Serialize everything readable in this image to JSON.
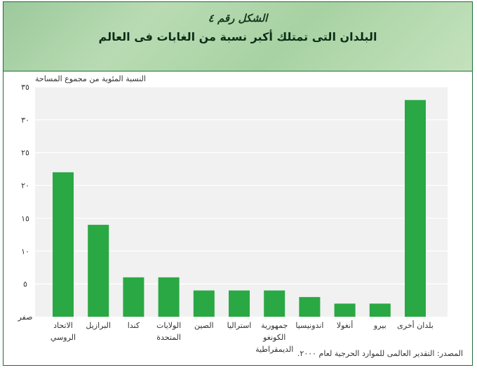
{
  "figure": {
    "number": "الشكل رقم ٤",
    "title": "البلدان التى تمتلك أكبر نسبة من الغابات فى العالم"
  },
  "source": "المصدر: التقدير العالمى للموارد الحرجية لعام ٢٠٠٠.",
  "colors": {
    "bar": "#2aa844",
    "plot_bg": "#f1f1f1",
    "grid": "#ffffff",
    "header": "#a8d2a3"
  },
  "chart_data": {
    "type": "bar",
    "ylabel": "النسبة المئوية من مجموع المساحة",
    "xlabel": "",
    "ylim": [
      0,
      35
    ],
    "yticks": [
      0,
      5,
      10,
      15,
      20,
      25,
      30,
      35
    ],
    "ytick_labels": [
      "صفر",
      "٥",
      "١٠",
      "١٥",
      "٢٠",
      "٢٥",
      "٣٠",
      "٣٥"
    ],
    "grid": true,
    "categories": [
      [
        "الاتحاد",
        "الروسي"
      ],
      [
        "البرازيل"
      ],
      [
        "كندا"
      ],
      [
        "الولايات",
        "المتحدة"
      ],
      [
        "الصين"
      ],
      [
        "استراليا"
      ],
      [
        "جمهورية",
        "الكونغو",
        "الديمقراطية"
      ],
      [
        "اندونيسيا"
      ],
      [
        "أنغولا"
      ],
      [
        "بيرو"
      ],
      [
        "بلدان أخرى"
      ]
    ],
    "values": [
      22,
      14,
      6,
      6,
      4,
      4,
      4,
      3,
      2,
      2,
      33
    ]
  }
}
